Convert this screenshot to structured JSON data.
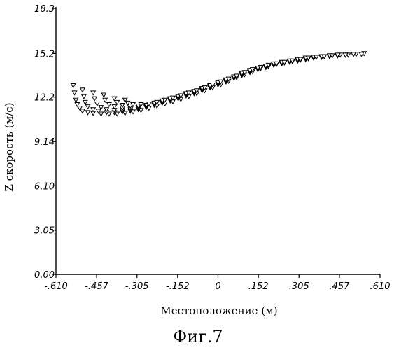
{
  "chart_data": {
    "type": "scatter",
    "title": "",
    "xlabel": "Местоположение (м)",
    "ylabel": "Z скорость (м/с)",
    "caption": "Фиг.7",
    "xlim": [
      -0.61,
      0.61
    ],
    "ylim": [
      0.0,
      18.3
    ],
    "x_ticks": [
      -0.61,
      -0.457,
      -0.305,
      -0.152,
      0,
      0.152,
      0.305,
      0.457,
      0.61
    ],
    "x_tick_labels": [
      "-.610",
      "-.457",
      "-.305",
      "-.152",
      "0",
      ".152",
      ".305",
      ".457",
      ".610"
    ],
    "y_ticks": [
      0.0,
      3.05,
      6.1,
      9.14,
      12.2,
      15.2,
      18.3
    ],
    "y_tick_labels": [
      "0.00",
      "3.05",
      "6.10",
      "9.14",
      "12.2",
      "15.2",
      "18.3"
    ],
    "grid": false,
    "legend": false,
    "marker": "open-triangle-down",
    "series": [
      {
        "x": [
          -0.545,
          -0.54,
          -0.535,
          -0.53,
          -0.52,
          -0.51,
          -0.49,
          -0.47,
          -0.44,
          -0.41,
          -0.38,
          -0.35,
          -0.32,
          -0.29,
          -0.26,
          -0.23,
          -0.2,
          -0.17,
          -0.14,
          -0.11,
          -0.08,
          -0.05,
          -0.02,
          0.01,
          0.04,
          0.07,
          0.1,
          0.13,
          0.16,
          0.19,
          0.22,
          0.25,
          0.28,
          0.31,
          0.34,
          0.37,
          0.4,
          0.43,
          0.46,
          0.49,
          0.52,
          0.55
        ],
        "y": [
          13.0,
          12.5,
          12.0,
          11.7,
          11.45,
          11.25,
          11.15,
          11.1,
          11.05,
          11.05,
          11.05,
          11.1,
          11.2,
          11.3,
          11.45,
          11.6,
          11.75,
          11.9,
          12.05,
          12.25,
          12.45,
          12.65,
          12.85,
          13.05,
          13.3,
          13.55,
          13.75,
          13.95,
          14.15,
          14.3,
          14.45,
          14.55,
          14.65,
          14.75,
          14.85,
          14.95,
          15.0,
          15.05,
          15.1,
          15.1,
          15.15,
          15.2
        ]
      },
      {
        "x": [
          -0.51,
          -0.505,
          -0.5,
          -0.49,
          -0.47,
          -0.45,
          -0.42,
          -0.39,
          -0.36,
          -0.33,
          -0.3,
          -0.27,
          -0.24,
          -0.21,
          -0.18,
          -0.15,
          -0.12,
          -0.09,
          -0.06,
          -0.03,
          0.0,
          0.03,
          0.06,
          0.09,
          0.12,
          0.15,
          0.18,
          0.21,
          0.24,
          0.27,
          0.3,
          0.33,
          0.36,
          0.39,
          0.42,
          0.45,
          0.48,
          0.51,
          0.54
        ],
        "y": [
          12.7,
          12.25,
          11.85,
          11.55,
          11.35,
          11.25,
          11.15,
          11.15,
          11.2,
          11.25,
          11.35,
          11.5,
          11.65,
          11.8,
          11.95,
          12.1,
          12.3,
          12.45,
          12.65,
          12.85,
          13.05,
          13.25,
          13.5,
          13.7,
          13.9,
          14.1,
          14.25,
          14.4,
          14.5,
          14.6,
          14.7,
          14.8,
          14.9,
          14.95,
          15.0,
          15.05,
          15.1,
          15.15,
          15.15
        ]
      },
      {
        "x": [
          -0.47,
          -0.465,
          -0.455,
          -0.44,
          -0.42,
          -0.39,
          -0.36,
          -0.33,
          -0.3,
          -0.27,
          -0.24,
          -0.21,
          -0.18,
          -0.15,
          -0.12,
          -0.09,
          -0.06,
          -0.03,
          0.0,
          0.03,
          0.06,
          0.09,
          0.12,
          0.15,
          0.18,
          0.21,
          0.24,
          0.27,
          0.3,
          0.33,
          0.36,
          0.39,
          0.42,
          0.45,
          0.48,
          0.51
        ],
        "y": [
          12.5,
          12.1,
          11.75,
          11.5,
          11.35,
          11.3,
          11.3,
          11.35,
          11.45,
          11.55,
          11.7,
          11.85,
          12.0,
          12.15,
          12.35,
          12.5,
          12.7,
          12.9,
          13.1,
          13.3,
          13.5,
          13.75,
          13.95,
          14.1,
          14.25,
          14.4,
          14.5,
          14.6,
          14.7,
          14.8,
          14.9,
          14.95,
          15.0,
          15.05,
          15.1,
          15.15
        ]
      },
      {
        "x": [
          -0.43,
          -0.425,
          -0.41,
          -0.39,
          -0.36,
          -0.33,
          -0.3,
          -0.27,
          -0.24,
          -0.21,
          -0.18,
          -0.15,
          -0.12,
          -0.09,
          -0.06,
          -0.03,
          0.0,
          0.03,
          0.06,
          0.09,
          0.12,
          0.15,
          0.18,
          0.21,
          0.24,
          0.27,
          0.3,
          0.33,
          0.36,
          0.39,
          0.42,
          0.45,
          0.48
        ],
        "y": [
          12.35,
          12.0,
          11.7,
          11.55,
          11.45,
          11.45,
          11.5,
          11.6,
          11.75,
          11.9,
          12.05,
          12.2,
          12.4,
          12.55,
          12.75,
          12.95,
          13.15,
          13.35,
          13.55,
          13.8,
          14.0,
          14.15,
          14.3,
          14.45,
          14.55,
          14.65,
          14.75,
          14.85,
          14.9,
          14.95,
          15.0,
          15.05,
          15.1
        ]
      },
      {
        "x": [
          -0.39,
          -0.38,
          -0.36,
          -0.33,
          -0.3,
          -0.27,
          -0.24,
          -0.21,
          -0.18,
          -0.15,
          -0.12,
          -0.09,
          -0.06,
          -0.03,
          0.0,
          0.03,
          0.06,
          0.09,
          0.12,
          0.15,
          0.18,
          0.21,
          0.24,
          0.27,
          0.3,
          0.33,
          0.36,
          0.39,
          0.42,
          0.45
        ],
        "y": [
          12.1,
          11.85,
          11.65,
          11.6,
          11.6,
          11.65,
          11.8,
          11.95,
          12.1,
          12.25,
          12.45,
          12.6,
          12.8,
          13.0,
          13.2,
          13.4,
          13.6,
          13.85,
          14.05,
          14.2,
          14.35,
          14.5,
          14.6,
          14.7,
          14.8,
          14.9,
          14.95,
          15.0,
          15.05,
          15.1
        ]
      },
      {
        "x": [
          -0.35,
          -0.34,
          -0.32,
          -0.29,
          -0.26,
          -0.23,
          -0.2,
          -0.17,
          -0.14,
          -0.11,
          -0.08,
          -0.05,
          -0.02,
          0.01,
          0.04,
          0.07,
          0.1,
          0.13,
          0.16,
          0.19,
          0.22,
          0.25,
          0.28,
          0.31,
          0.34,
          0.37,
          0.4,
          0.43
        ],
        "y": [
          12.0,
          11.8,
          11.7,
          11.7,
          11.75,
          11.85,
          12.0,
          12.15,
          12.3,
          12.5,
          12.65,
          12.85,
          13.05,
          13.25,
          13.45,
          13.65,
          13.9,
          14.1,
          14.25,
          14.4,
          14.5,
          14.6,
          14.7,
          14.8,
          14.9,
          14.95,
          15.0,
          15.05
        ]
      }
    ]
  }
}
